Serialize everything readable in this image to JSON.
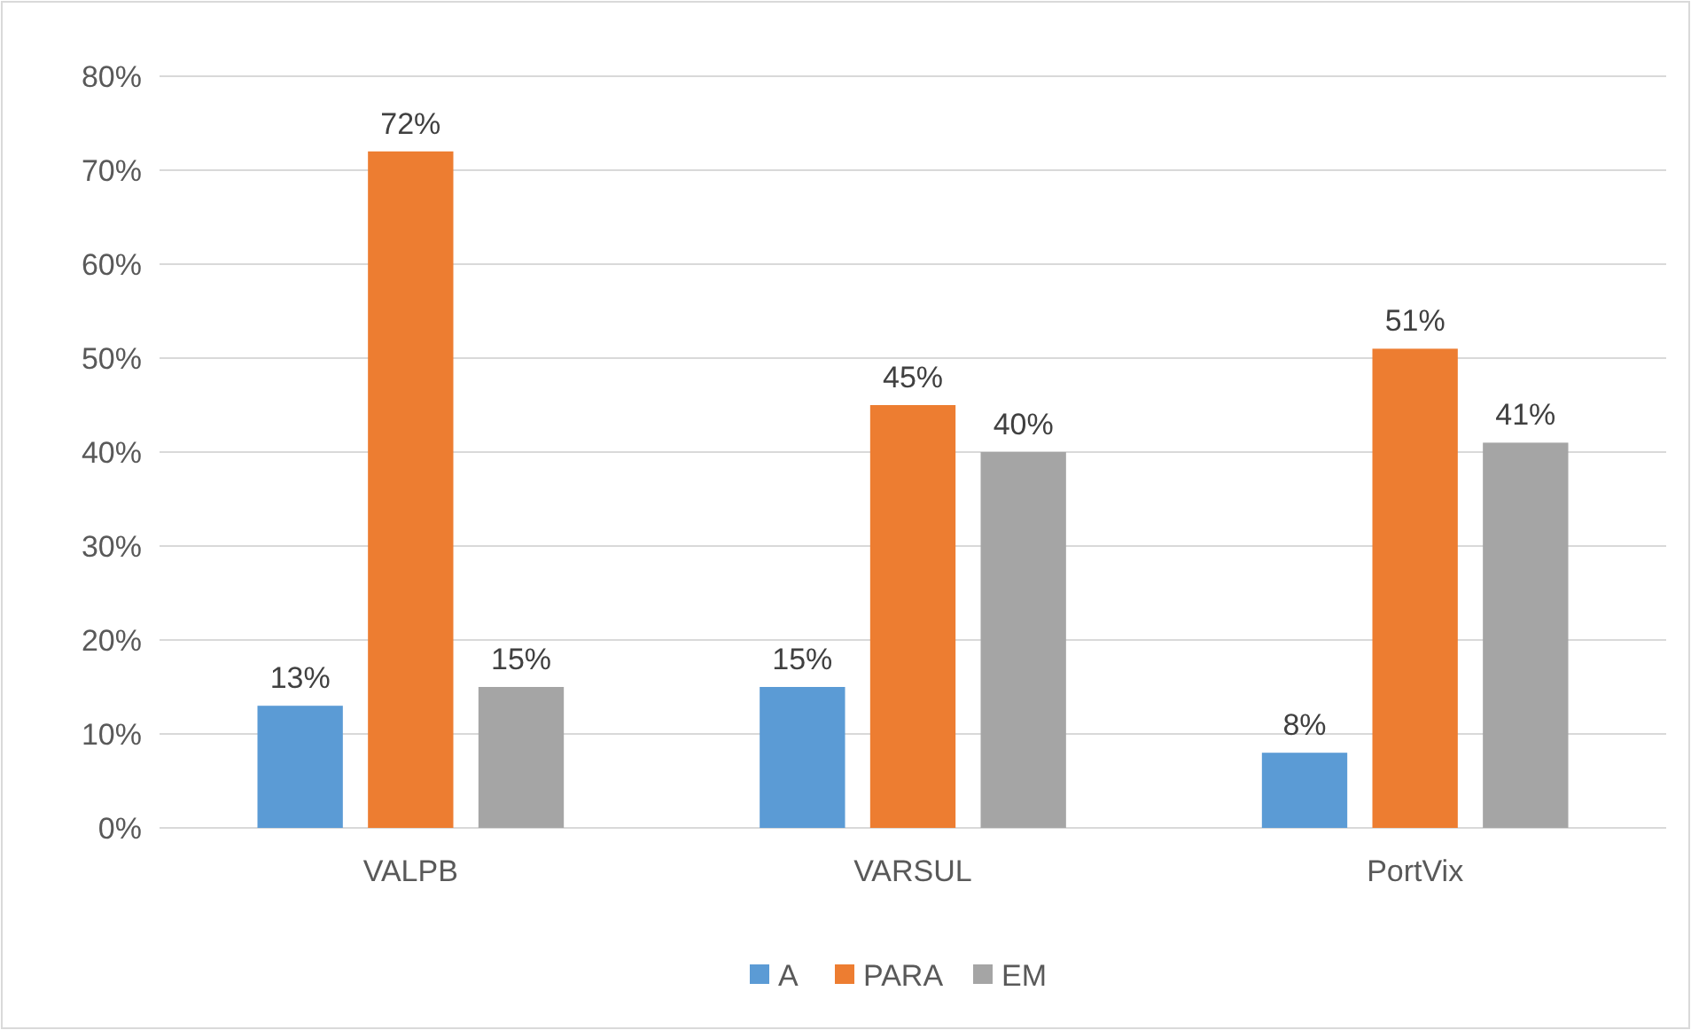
{
  "chart_data": {
    "type": "bar",
    "categories": [
      "VALPB",
      "VARSUL",
      "PortVix"
    ],
    "series": [
      {
        "name": "A",
        "color": "#5b9bd5",
        "values": [
          13,
          15,
          8
        ],
        "value_labels": [
          "13%",
          "15%",
          "8%"
        ]
      },
      {
        "name": "PARA",
        "color": "#ed7d31",
        "values": [
          72,
          45,
          51
        ],
        "value_labels": [
          "72%",
          "45%",
          "51%"
        ]
      },
      {
        "name": "EM",
        "color": "#a5a5a5",
        "values": [
          15,
          40,
          41
        ],
        "value_labels": [
          "15%",
          "40%",
          "41%"
        ]
      }
    ],
    "ylim": [
      0,
      80
    ],
    "yticks": [
      {
        "value": 0,
        "label": "0%"
      },
      {
        "value": 10,
        "label": "10%"
      },
      {
        "value": 20,
        "label": "20%"
      },
      {
        "value": 30,
        "label": "30%"
      },
      {
        "value": 40,
        "label": "40%"
      },
      {
        "value": 50,
        "label": "50%"
      },
      {
        "value": 60,
        "label": "60%"
      },
      {
        "value": 70,
        "label": "70%"
      },
      {
        "value": 80,
        "label": "80%"
      }
    ],
    "grid": "y",
    "legend": "bottom"
  }
}
